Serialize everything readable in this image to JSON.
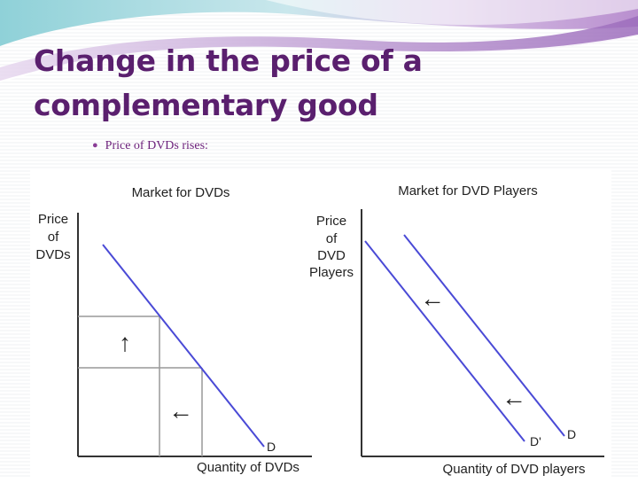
{
  "slide": {
    "title_line1": "Change in the price of a",
    "title_line2": "complementary good",
    "bullet": "Price of DVDs rises:"
  },
  "colors": {
    "title": "#5a1f6e",
    "bullet": "#6b1f7a",
    "curve": "#4a4ad6"
  },
  "left_graph": {
    "title": "Market for DVDs",
    "ylabel_lines": [
      "Price",
      "of",
      "DVDs"
    ],
    "xlabel": "Quantity of DVDs",
    "curve_label": "D",
    "up_arrow": "↑",
    "left_arrow": "←"
  },
  "right_graph": {
    "title": "Market for DVD Players",
    "ylabel_lines": [
      "Price",
      "of",
      "DVD",
      "Players"
    ],
    "xlabel": "Quantity of DVD players",
    "curve_label_original": "D",
    "curve_label_new": "D'",
    "arrow_1": "←",
    "arrow_2": "←"
  }
}
